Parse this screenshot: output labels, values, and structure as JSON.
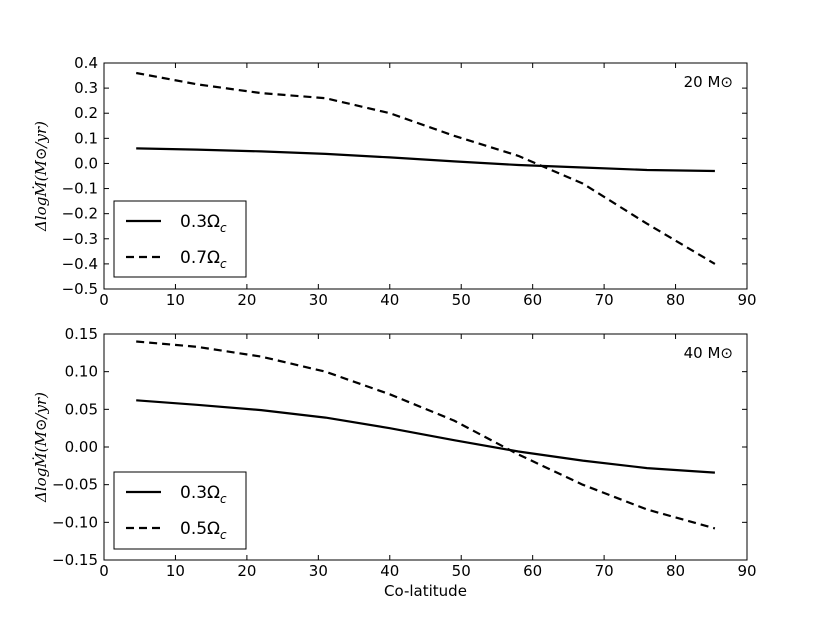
{
  "chart_data": [
    {
      "type": "line",
      "title": "",
      "xlabel": "",
      "ylabel": "ΔlogṀ(M⊙/yr)",
      "annotation": "20 M⊙",
      "xlim": [
        0,
        90
      ],
      "ylim": [
        -0.5,
        0.4
      ],
      "xticks": [
        "0",
        "10",
        "20",
        "30",
        "40",
        "50",
        "60",
        "70",
        "80",
        "90"
      ],
      "yticks": [
        "0.4",
        "0.3",
        "0.2",
        "0.1",
        "0.0",
        "−0.1",
        "−0.2",
        "−0.3",
        "−0.4",
        "−0.5"
      ],
      "legend_position": "lower-left",
      "series": [
        {
          "name": "0.3Ω_c",
          "style": "solid",
          "x": [
            4.5,
            13,
            22,
            31,
            40,
            49,
            58,
            67,
            76,
            85.5
          ],
          "y": [
            0.06,
            0.055,
            0.048,
            0.038,
            0.024,
            0.008,
            -0.006,
            -0.016,
            -0.026,
            -0.03
          ]
        },
        {
          "name": "0.7Ω_c",
          "style": "dashed",
          "x": [
            4.5,
            13,
            22,
            31,
            40,
            49,
            58,
            67,
            76,
            85.5
          ],
          "y": [
            0.36,
            0.315,
            0.28,
            0.26,
            0.2,
            0.11,
            0.03,
            -0.08,
            -0.24,
            -0.4
          ]
        }
      ]
    },
    {
      "type": "line",
      "title": "",
      "xlabel": "Co-latitude",
      "ylabel": "ΔlogṀ(M⊙/yr)",
      "annotation": "40 M⊙",
      "xlim": [
        0,
        90
      ],
      "ylim": [
        -0.15,
        0.15
      ],
      "xticks": [
        "0",
        "10",
        "20",
        "30",
        "40",
        "50",
        "60",
        "70",
        "80",
        "90"
      ],
      "yticks": [
        "0.15",
        "0.10",
        "0.05",
        "0.00",
        "−0.05",
        "−0.10",
        "−0.15"
      ],
      "legend_position": "lower-left",
      "series": [
        {
          "name": "0.3Ω_c",
          "style": "solid",
          "x": [
            4.5,
            13,
            22,
            31,
            40,
            49,
            58,
            67,
            76,
            85.5
          ],
          "y": [
            0.062,
            0.056,
            0.049,
            0.039,
            0.025,
            0.009,
            -0.006,
            -0.018,
            -0.028,
            -0.034
          ]
        },
        {
          "name": "0.5Ω_c",
          "style": "dashed",
          "x": [
            4.5,
            13,
            22,
            31,
            40,
            49,
            58,
            67,
            76,
            85.5
          ],
          "y": [
            0.14,
            0.133,
            0.12,
            0.1,
            0.07,
            0.035,
            -0.01,
            -0.05,
            -0.083,
            -0.108
          ]
        }
      ]
    }
  ]
}
